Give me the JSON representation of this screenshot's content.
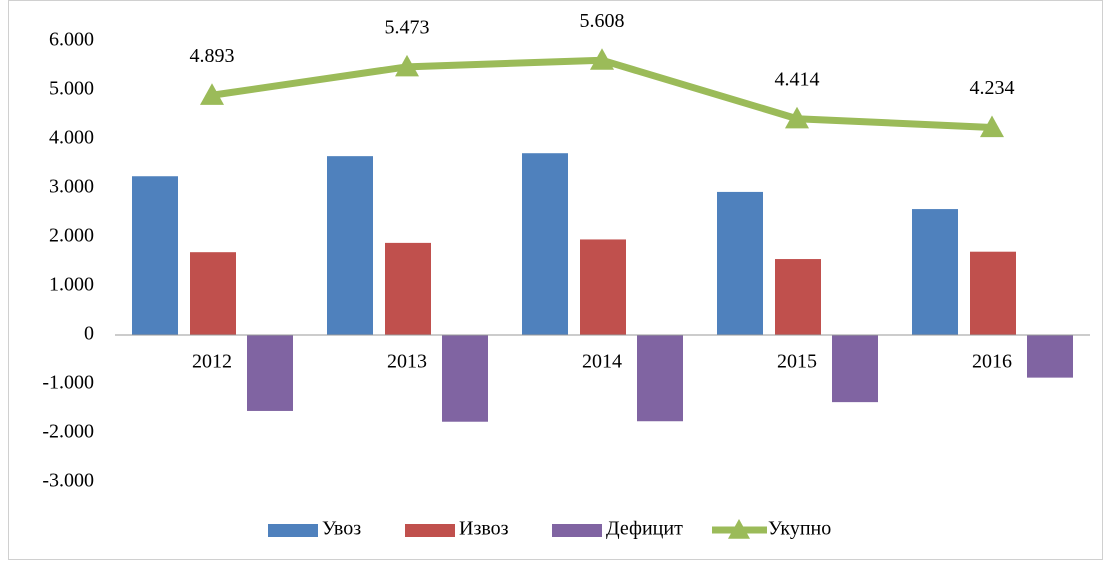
{
  "chart_data": {
    "type": "bar",
    "categories": [
      "2012",
      "2013",
      "2014",
      "2015",
      "2016"
    ],
    "series": [
      {
        "name": "Увоз",
        "color": "#4f81bd",
        "values": [
          3240,
          3650,
          3710,
          2920,
          2570
        ]
      },
      {
        "name": "Извоз",
        "color": "#c0504d",
        "values": [
          1690,
          1880,
          1950,
          1550,
          1700
        ]
      },
      {
        "name": "Дефицит",
        "color": "#8064a2",
        "values": [
          -1550,
          -1770,
          -1760,
          -1370,
          -870
        ]
      },
      {
        "name": "Укупно",
        "type": "line",
        "color": "#9bbb59",
        "values": [
          4893,
          5473,
          5608,
          4414,
          4234
        ],
        "value_labels": [
          "4.893",
          "5.473",
          "5.608",
          "4.414",
          "4.234"
        ]
      }
    ],
    "ylim": [
      -3000,
      6000
    ],
    "yticks": [
      {
        "value": -3000,
        "label": "-3.000"
      },
      {
        "value": -2000,
        "label": "-2.000"
      },
      {
        "value": -1000,
        "label": "-1.000"
      },
      0,
      {
        "value": 1000,
        "label": "1.000"
      },
      {
        "value": 2000,
        "label": "2.000"
      },
      {
        "value": 3000,
        "label": "3.000"
      },
      {
        "value": 4000,
        "label": "4.000"
      },
      {
        "value": 5000,
        "label": "5.000"
      },
      {
        "value": 6000,
        "label": "6.000"
      }
    ],
    "legend": "bottom"
  }
}
